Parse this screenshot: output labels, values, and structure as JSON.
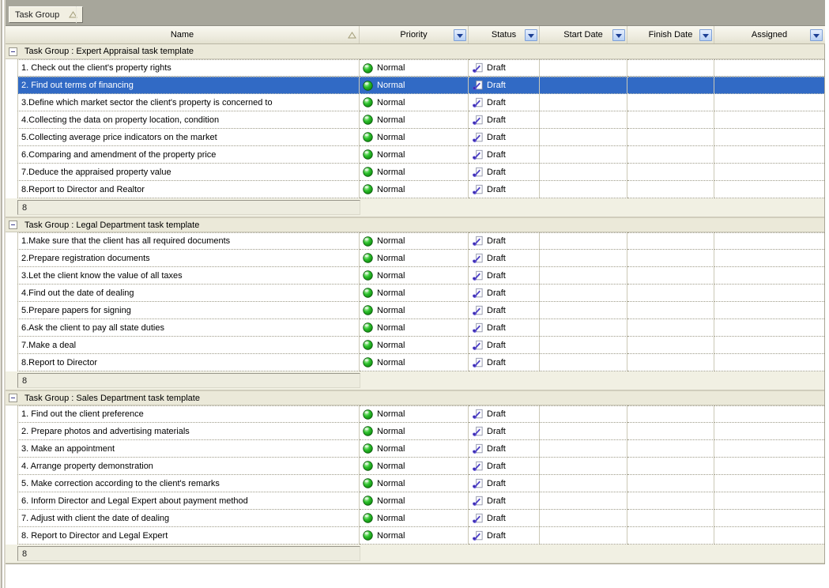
{
  "group_panel": {
    "field_label": "Task Group",
    "sort_icon": "sort-ascending-triangle-icon"
  },
  "columns": [
    {
      "key": "name",
      "label": "Name",
      "sort": "ascending",
      "filter_button": false
    },
    {
      "key": "priority",
      "label": "Priority",
      "filter_button": true
    },
    {
      "key": "status",
      "label": "Status",
      "filter_button": true
    },
    {
      "key": "start",
      "label": "Start Date",
      "filter_button": true
    },
    {
      "key": "finish",
      "label": "Finish Date",
      "filter_button": true
    },
    {
      "key": "assigned",
      "label": "Assigned",
      "filter_button": true
    }
  ],
  "icons": {
    "priority_normal": "green-sphere-icon",
    "status_draft": "draft-pen-document-icon",
    "collapse": "minus-box-icon",
    "filter": "filter-dropdown-arrow-icon"
  },
  "colors": {
    "selection_bg": "#316ac5",
    "selection_text": "#ffffff",
    "band_bg": "#a7a69b",
    "group_row_bg": "#ebe9d9",
    "header_bg": "#efeddf",
    "priority_icon_green": "#1db41d",
    "status_icon_purple": "#4b3fc4"
  },
  "groups": [
    {
      "title": "Task Group : Expert Appraisal task template",
      "count": "8",
      "tasks": [
        {
          "name": "1. Check out the client's property rights",
          "priority": "Normal",
          "status": "Draft",
          "start": "",
          "finish": "",
          "assigned": "",
          "selected": false
        },
        {
          "name": "2. Find out terms of financing",
          "priority": "Normal",
          "status": "Draft",
          "start": "",
          "finish": "",
          "assigned": "",
          "selected": true
        },
        {
          "name": "3.Define which market sector the client's property is concerned to",
          "priority": "Normal",
          "status": "Draft",
          "start": "",
          "finish": "",
          "assigned": "",
          "selected": false
        },
        {
          "name": "4.Collecting the data on property location, condition",
          "priority": "Normal",
          "status": "Draft",
          "start": "",
          "finish": "",
          "assigned": "",
          "selected": false
        },
        {
          "name": "5.Collecting average price indicators on the market",
          "priority": "Normal",
          "status": "Draft",
          "start": "",
          "finish": "",
          "assigned": "",
          "selected": false
        },
        {
          "name": "6.Comparing and amendment of the property price",
          "priority": "Normal",
          "status": "Draft",
          "start": "",
          "finish": "",
          "assigned": "",
          "selected": false
        },
        {
          "name": "7.Deduce the appraised property value",
          "priority": "Normal",
          "status": "Draft",
          "start": "",
          "finish": "",
          "assigned": "",
          "selected": false
        },
        {
          "name": "8.Report to Director and Realtor",
          "priority": "Normal",
          "status": "Draft",
          "start": "",
          "finish": "",
          "assigned": "",
          "selected": false
        }
      ]
    },
    {
      "title": "Task Group : Legal Department task template",
      "count": "8",
      "tasks": [
        {
          "name": "1.Make sure that the client has all required documents",
          "priority": "Normal",
          "status": "Draft",
          "start": "",
          "finish": "",
          "assigned": "",
          "selected": false
        },
        {
          "name": "2.Prepare registration documents",
          "priority": "Normal",
          "status": "Draft",
          "start": "",
          "finish": "",
          "assigned": "",
          "selected": false
        },
        {
          "name": "3.Let the client know the value of all taxes",
          "priority": "Normal",
          "status": "Draft",
          "start": "",
          "finish": "",
          "assigned": "",
          "selected": false
        },
        {
          "name": "4.Find out the date of dealing",
          "priority": "Normal",
          "status": "Draft",
          "start": "",
          "finish": "",
          "assigned": "",
          "selected": false
        },
        {
          "name": "5.Prepare papers for signing",
          "priority": "Normal",
          "status": "Draft",
          "start": "",
          "finish": "",
          "assigned": "",
          "selected": false
        },
        {
          "name": "6.Ask the client to pay all state duties",
          "priority": "Normal",
          "status": "Draft",
          "start": "",
          "finish": "",
          "assigned": "",
          "selected": false
        },
        {
          "name": "7.Make a deal",
          "priority": "Normal",
          "status": "Draft",
          "start": "",
          "finish": "",
          "assigned": "",
          "selected": false
        },
        {
          "name": "8.Report to Director",
          "priority": "Normal",
          "status": "Draft",
          "start": "",
          "finish": "",
          "assigned": "",
          "selected": false
        }
      ]
    },
    {
      "title": "Task Group : Sales Department task template",
      "count": "8",
      "tasks": [
        {
          "name": "1. Find out the client preference",
          "priority": "Normal",
          "status": "Draft",
          "start": "",
          "finish": "",
          "assigned": "",
          "selected": false
        },
        {
          "name": "2. Prepare photos and advertising materials",
          "priority": "Normal",
          "status": "Draft",
          "start": "",
          "finish": "",
          "assigned": "",
          "selected": false
        },
        {
          "name": "3. Make an appointment",
          "priority": "Normal",
          "status": "Draft",
          "start": "",
          "finish": "",
          "assigned": "",
          "selected": false
        },
        {
          "name": "4. Arrange property demonstration",
          "priority": "Normal",
          "status": "Draft",
          "start": "",
          "finish": "",
          "assigned": "",
          "selected": false
        },
        {
          "name": "5. Make correction according to the client's remarks",
          "priority": "Normal",
          "status": "Draft",
          "start": "",
          "finish": "",
          "assigned": "",
          "selected": false
        },
        {
          "name": "6. Inform Director and Legal Expert about payment method",
          "priority": "Normal",
          "status": "Draft",
          "start": "",
          "finish": "",
          "assigned": "",
          "selected": false
        },
        {
          "name": "7. Adjust with client the date of dealing",
          "priority": "Normal",
          "status": "Draft",
          "start": "",
          "finish": "",
          "assigned": "",
          "selected": false
        },
        {
          "name": "8. Report to Director and Legal Expert",
          "priority": "Normal",
          "status": "Draft",
          "start": "",
          "finish": "",
          "assigned": "",
          "selected": false
        }
      ]
    }
  ]
}
